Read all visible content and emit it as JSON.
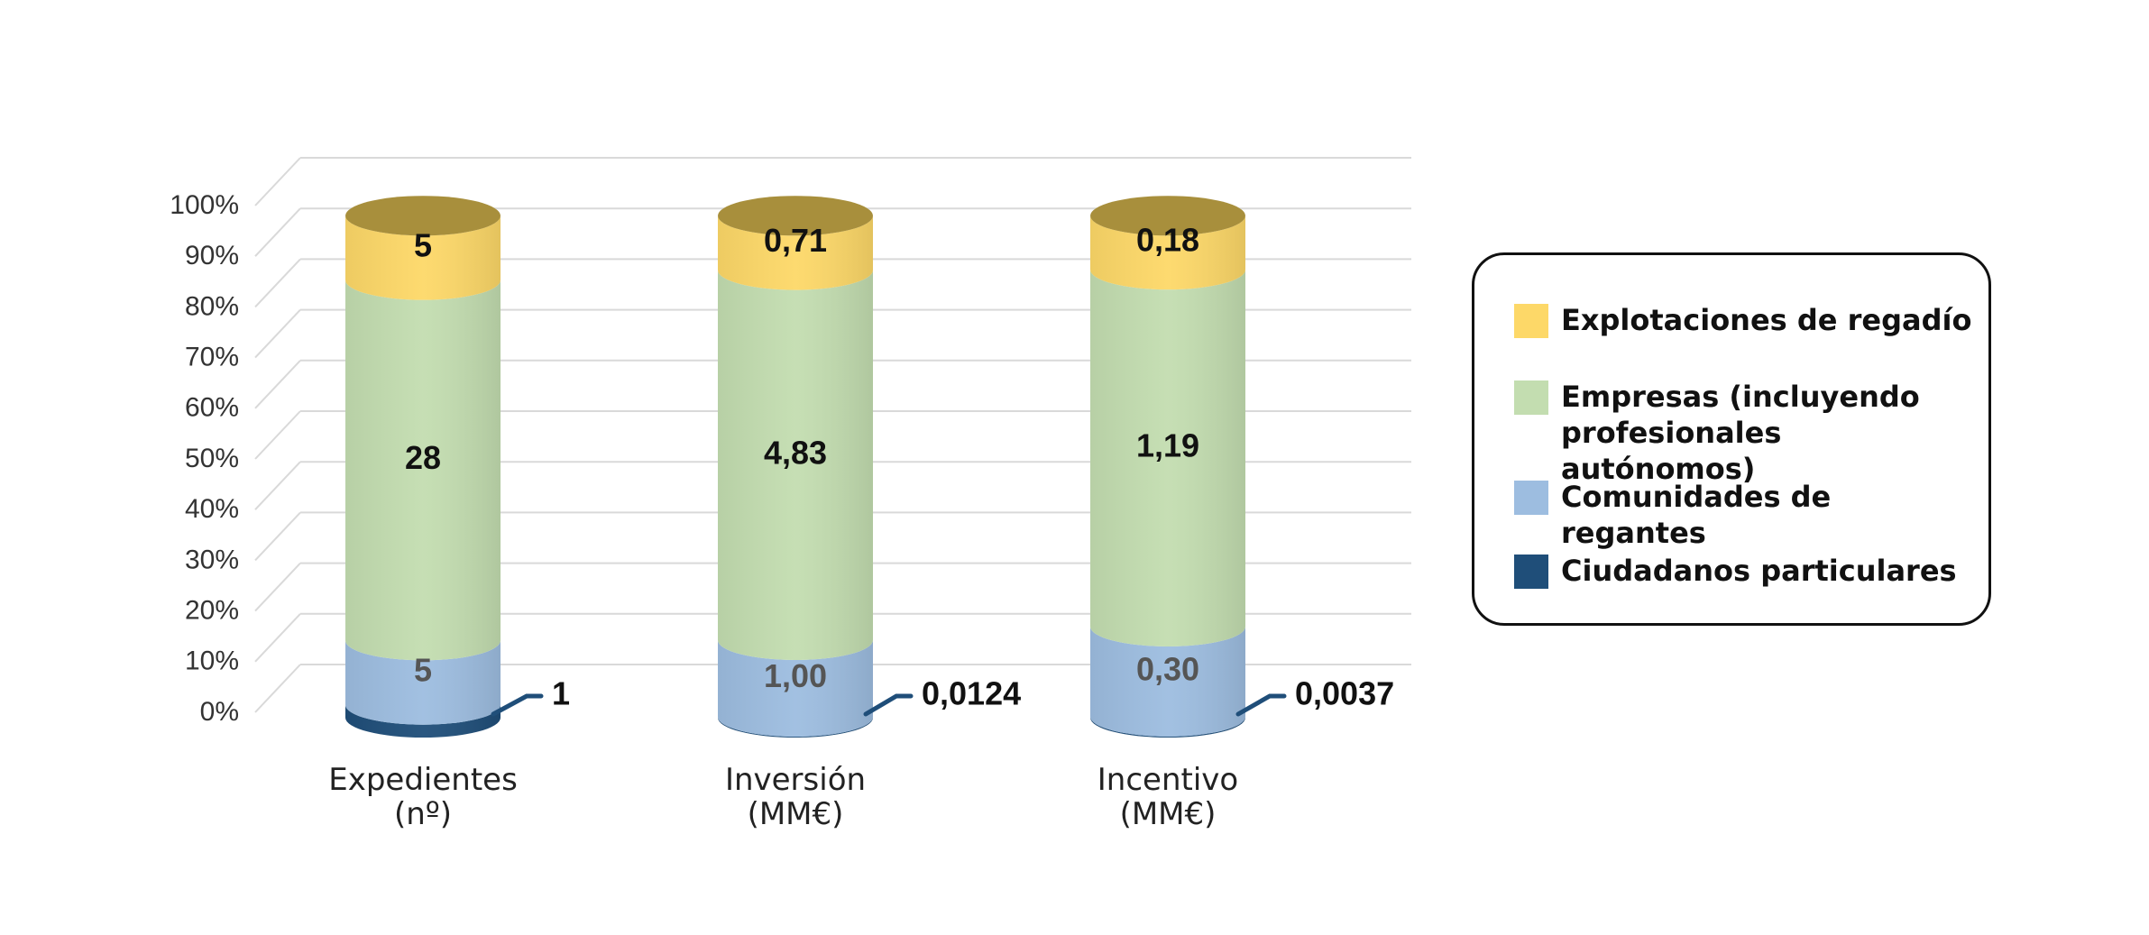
{
  "chart_data": {
    "type": "bar",
    "stacked": true,
    "normalized": true,
    "shape": "cylinder",
    "categories": [
      "Expedientes\n(nº)",
      "Inversión\n(MM€)",
      "Incentivo\n(MM€)"
    ],
    "yticks": [
      "0%",
      "10%",
      "20%",
      "30%",
      "40%",
      "50%",
      "60%",
      "70%",
      "80%",
      "90%",
      "100%"
    ],
    "ylim": [
      0,
      100
    ],
    "grid": true,
    "legend_position": "right",
    "series": [
      {
        "name": "Ciudadanos particulares",
        "color": "#1f4e79",
        "values": [
          1,
          0.0124,
          0.0037
        ],
        "labels": [
          "1",
          "0,0124",
          "0,0037"
        ]
      },
      {
        "name": "Comunidades de regantes",
        "color": "#9dbde0",
        "values": [
          5,
          1.0,
          0.3
        ],
        "labels": [
          "5",
          "1,00",
          "0,30"
        ]
      },
      {
        "name": "Empresas (incluyendo profesionales autónomos)",
        "color": "#c3ddb0",
        "values": [
          28,
          4.83,
          1.19
        ],
        "labels": [
          "28",
          "4,83",
          "1,19"
        ]
      },
      {
        "name": "Explotaciones de regadío",
        "color": "#fdd868",
        "values": [
          5,
          0.71,
          0.18
        ],
        "labels": [
          "5",
          "0,71",
          "0,18"
        ]
      }
    ]
  },
  "legend": {
    "items": [
      {
        "label": "Explotaciones de regadío",
        "color": "#fdd868"
      },
      {
        "label": "Empresas (incluyendo profesionales autónomos)",
        "color": "#c3ddb0"
      },
      {
        "label": "Comunidades de regantes",
        "color": "#9dbde0"
      },
      {
        "label": "Ciudadanos particulares",
        "color": "#1f4e79"
      }
    ]
  }
}
